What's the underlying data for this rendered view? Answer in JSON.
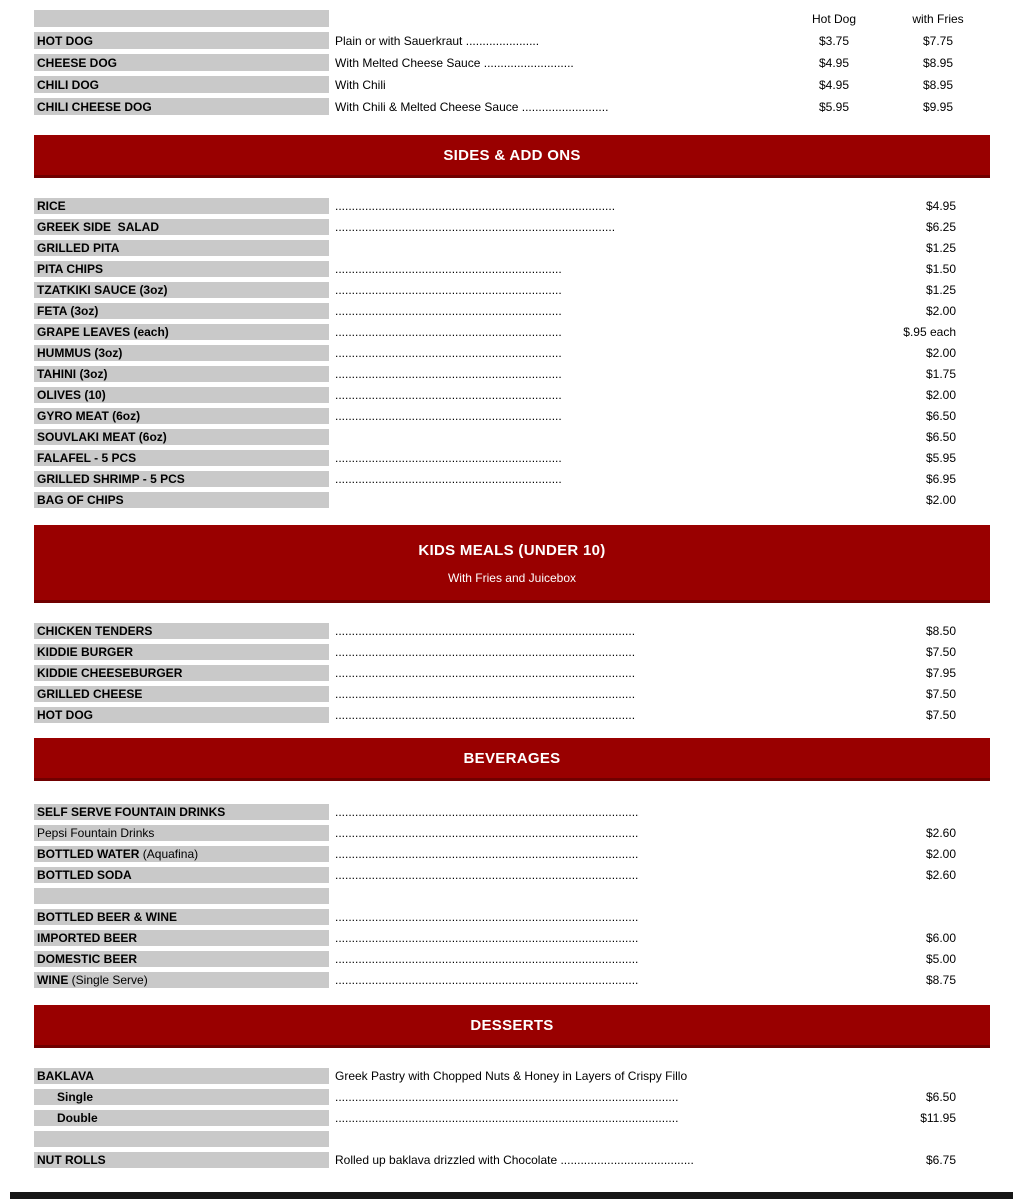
{
  "colors": {
    "banner_red": "#990000",
    "banner_edge": "#700000",
    "label_cell_gray": "#c9c9c9",
    "bottom_bar": "#161616",
    "text": "#000000",
    "banner_text": "#ffffff"
  },
  "top_table": {
    "col1_header": "Hot Dog",
    "col2_header": "with Fries",
    "rows": [
      {
        "label": "HOT DOG",
        "desc": "Plain or with Sauerkraut ",
        "dots": "......................",
        "price1": "$3.75",
        "price2": "$7.75"
      },
      {
        "label": "CHEESE DOG",
        "desc": "With Melted Cheese Sauce ",
        "dots": "...........................",
        "price1": "$4.95",
        "price2": "$8.95"
      },
      {
        "label": "CHILI DOG",
        "desc": "With Chili",
        "dots": "",
        "price1": "$4.95",
        "price2": "$8.95"
      },
      {
        "label": "CHILI CHEESE DOG",
        "desc": "With Chili & Melted Cheese Sauce ",
        "dots": "..........................",
        "price1": "$5.95",
        "price2": "$9.95"
      }
    ]
  },
  "sections": {
    "sides": {
      "title": "SIDES & ADD ONS",
      "rows": [
        {
          "label": "RICE",
          "dots": "....................................................................................",
          "price": "$4.95"
        },
        {
          "label": "GREEK SIDE  SALAD",
          "dots": "....................................................................................",
          "price": "$6.25"
        },
        {
          "label": "GRILLED PITA",
          "dots": "",
          "price": "$1.25"
        },
        {
          "label": "PITA CHIPS",
          "dots": "....................................................................",
          "price": "$1.50"
        },
        {
          "label": "TZATKIKI SAUCE (3oz)",
          "dots": "....................................................................",
          "price": "$1.25"
        },
        {
          "label": "FETA (3oz)",
          "dots": "....................................................................",
          "price": "$2.00"
        },
        {
          "label": "GRAPE LEAVES (each)",
          "dots": "....................................................................",
          "price": "$.95 each"
        },
        {
          "label": "HUMMUS (3oz)",
          "dots": "....................................................................",
          "price": "$2.00"
        },
        {
          "label": "TAHINI (3oz)",
          "dots": "....................................................................",
          "price": "$1.75"
        },
        {
          "label": "OLIVES (10)",
          "dots": "....................................................................",
          "price": "$2.00"
        },
        {
          "label": "GYRO MEAT (6oz)",
          "dots": "....................................................................",
          "price": "$6.50"
        },
        {
          "label": "SOUVLAKI MEAT (6oz)",
          "dots": "",
          "price": "$6.50"
        },
        {
          "label": "FALAFEL - 5 PCS",
          "dots": "....................................................................",
          "price": "$5.95"
        },
        {
          "label": "GRILLED SHRIMP - 5 PCS",
          "dots": "....................................................................",
          "price": "$6.95"
        },
        {
          "label": "BAG OF CHIPS",
          "dots": "",
          "price": "$2.00"
        }
      ]
    },
    "kids": {
      "title": "KIDS MEALS (UNDER 10)",
      "subtitle": "With Fries and Juicebox",
      "rows": [
        {
          "label": "CHICKEN TENDERS",
          "dots": "..........................................................................................",
          "price": "$8.50"
        },
        {
          "label": "KIDDIE BURGER",
          "dots": "..........................................................................................",
          "price": "$7.50"
        },
        {
          "label": "KIDDIE CHEESEBURGER",
          "dots": "..........................................................................................",
          "price": "$7.95"
        },
        {
          "label": "GRILLED CHEESE",
          "dots": "..........................................................................................",
          "price": "$7.50"
        },
        {
          "label": "HOT DOG",
          "dots": "..........................................................................................",
          "price": "$7.50"
        }
      ]
    },
    "beverages": {
      "title": "BEVERAGES",
      "rows": [
        {
          "label": "SELF SERVE FOUNTAIN DRINKS",
          "dots": "...........................................................................................",
          "price": ""
        },
        {
          "label_norm": "Pepsi Fountain Drinks",
          "dots": "...........................................................................................",
          "price": "$2.60"
        },
        {
          "label": "BOTTLED WATER",
          "label_norm": " (Aquafina)",
          "dots": "...........................................................................................",
          "price": "$2.00"
        },
        {
          "label": "BOTTLED SODA",
          "dots": "...........................................................................................",
          "price": "$2.60"
        },
        {
          "label": "",
          "dots": "",
          "price": ""
        },
        {
          "label": "BOTTLED BEER & WINE",
          "dots": "...........................................................................................",
          "price": ""
        },
        {
          "label": "IMPORTED BEER",
          "dots": "...........................................................................................",
          "price": "$6.00"
        },
        {
          "label": "DOMESTIC BEER",
          "dots": "...........................................................................................",
          "price": "$5.00"
        },
        {
          "label": "WINE",
          "label_norm": " (Single Serve)",
          "dots": "...........................................................................................",
          "price": "$8.75"
        }
      ]
    },
    "desserts": {
      "title": "DESSERTS",
      "rows": [
        {
          "label": "BAKLAVA",
          "desc": "Greek Pastry with Chopped Nuts & Honey in Layers of Crispy Fillo",
          "dots": "",
          "price": ""
        },
        {
          "label": "Single",
          "indent": true,
          "dots": ".......................................................................................................",
          "price": "$6.50"
        },
        {
          "label": "Double",
          "indent": true,
          "dots": ".......................................................................................................",
          "price": "$11.95"
        },
        {
          "label": "",
          "dots": "",
          "price": ""
        },
        {
          "label": "NUT ROLLS",
          "desc": "Rolled up baklava drizzled with Chocolate ",
          "dots": "........................................",
          "price": "$6.75"
        }
      ]
    }
  }
}
